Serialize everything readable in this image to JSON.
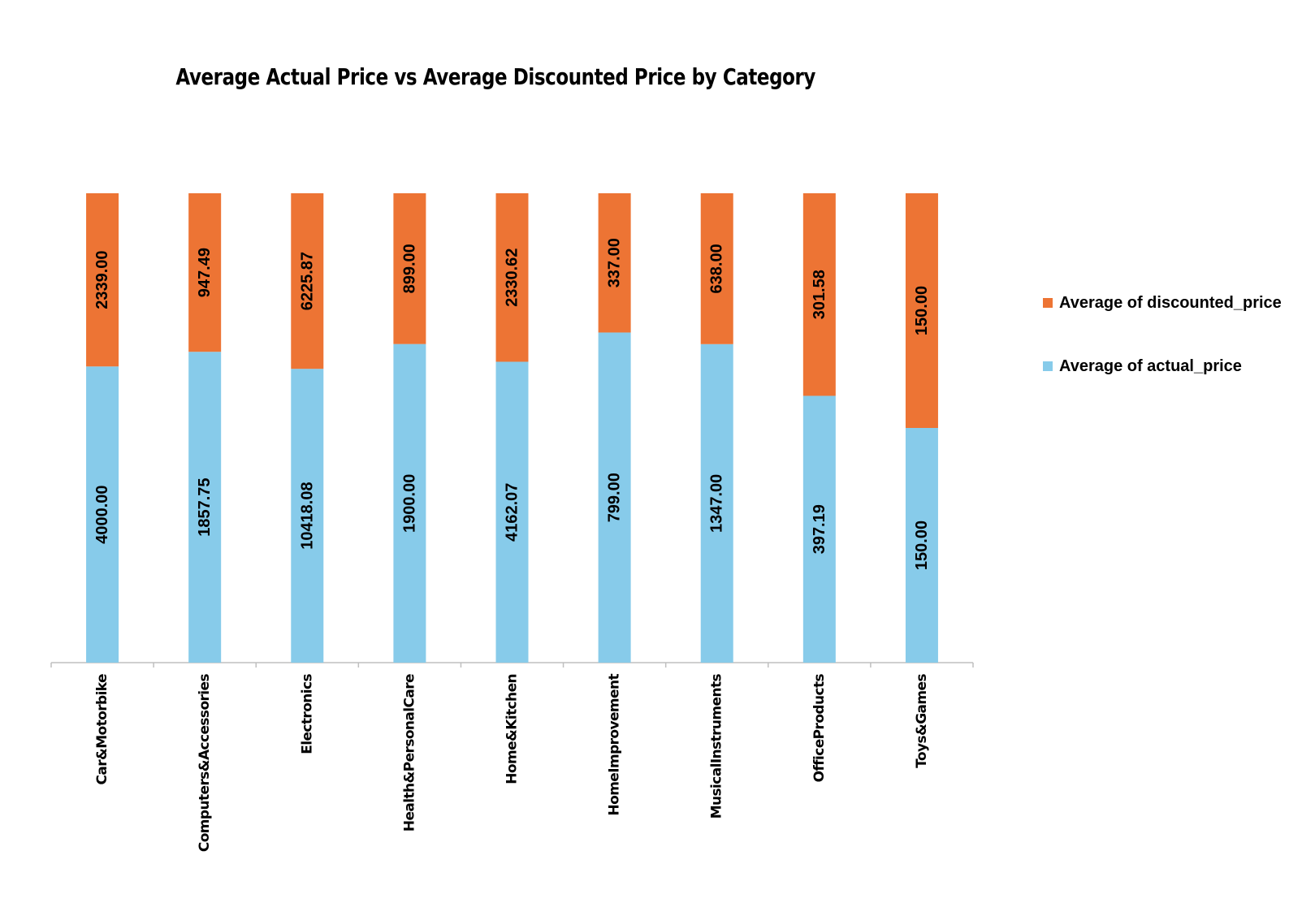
{
  "chart_data": {
    "type": "bar",
    "stacked": true,
    "normalized": true,
    "title": "Average Actual Price vs Average Discounted Price by Category",
    "categories": [
      "Car&Motorbike",
      "Computers&Accessories",
      "Electronics",
      "Health&PersonalCare",
      "Home&Kitchen",
      "HomeImprovement",
      "MusicalInstruments",
      "OfficeProducts",
      "Toys&Games"
    ],
    "series": [
      {
        "name": "Average of actual_price",
        "color": "#87CBEA",
        "values": [
          4000.0,
          1857.75,
          10418.08,
          1900.0,
          4162.07,
          799.0,
          1347.0,
          397.19,
          150.0
        ],
        "labels": [
          "4000.00",
          "1857.75",
          "10418.08",
          "1900.00",
          "4162.07",
          "799.00",
          "1347.00",
          "397.19",
          "150.00"
        ]
      },
      {
        "name": "Average of discounted_price",
        "color": "#ED7434",
        "values": [
          2339.0,
          947.49,
          6225.87,
          899.0,
          2330.62,
          337.0,
          638.0,
          301.58,
          150.0
        ],
        "labels": [
          "2339.00",
          "947.49",
          "6225.87",
          "899.00",
          "2330.62",
          "337.00",
          "638.00",
          "301.58",
          "150.00"
        ]
      }
    ],
    "legend_position": "right",
    "gridlines": false
  }
}
